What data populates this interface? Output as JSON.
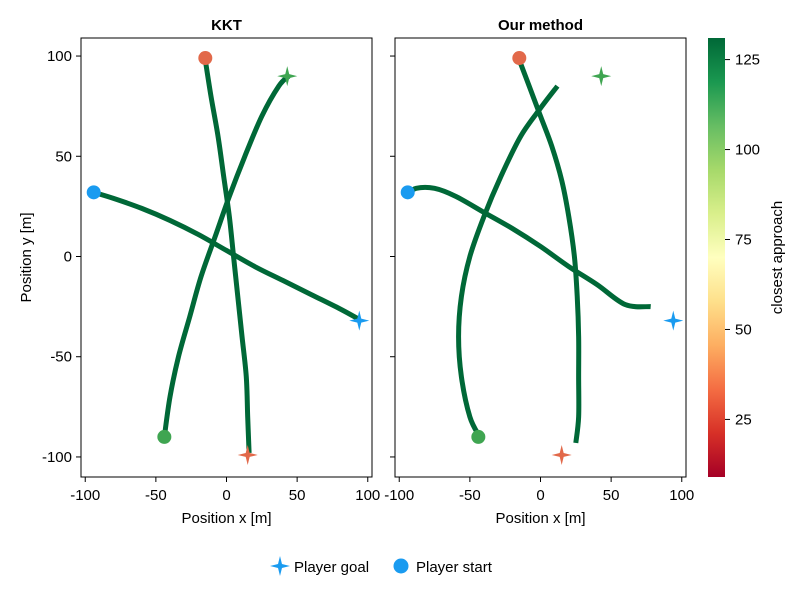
{
  "chart_data": {
    "type": "line",
    "panels": [
      {
        "title": "KKT",
        "xlabel": "Position x [m]",
        "ylabel": "Position y [m]",
        "xlim": [
          -103,
          103
        ],
        "ylim": [
          -110,
          109
        ],
        "xticks": [
          -100,
          -50,
          0,
          50,
          100
        ],
        "yticks": [
          -100,
          -50,
          0,
          50,
          100
        ],
        "trajectories": [
          {
            "points": [
              [
                -94,
                32
              ],
              [
                -80,
                29
              ],
              [
                -60,
                24
              ],
              [
                -40,
                18
              ],
              [
                -20,
                11
              ],
              [
                0,
                3
              ],
              [
                20,
                -5
              ],
              [
                40,
                -12
              ],
              [
                60,
                -19
              ],
              [
                80,
                -26
              ],
              [
                93,
                -31
              ]
            ]
          },
          {
            "points": [
              [
                -15,
                98
              ],
              [
                -11,
                80
              ],
              [
                -6,
                60
              ],
              [
                -2,
                40
              ],
              [
                2,
                20
              ],
              [
                5,
                0
              ],
              [
                8,
                -20
              ],
              [
                11,
                -40
              ],
              [
                14,
                -60
              ],
              [
                15,
                -80
              ],
              [
                16,
                -98
              ]
            ]
          },
          {
            "points": [
              [
                -44,
                -90
              ],
              [
                -40,
                -70
              ],
              [
                -34,
                -50
              ],
              [
                -26,
                -30
              ],
              [
                -18,
                -10
              ],
              [
                -8,
                10
              ],
              [
                2,
                30
              ],
              [
                13,
                50
              ],
              [
                25,
                70
              ],
              [
                37,
                85
              ],
              [
                44,
                90
              ]
            ]
          }
        ],
        "starts": [
          {
            "x": -94,
            "y": 32,
            "color": "#1a9bf0"
          },
          {
            "x": -15,
            "y": 99,
            "color": "#e2694a"
          },
          {
            "x": -44,
            "y": -90,
            "color": "#3fa551"
          }
        ],
        "goals": [
          {
            "x": 94,
            "y": -32,
            "color": "#1a9bf0"
          },
          {
            "x": 15,
            "y": -99,
            "color": "#e2694a"
          },
          {
            "x": 43,
            "y": 90,
            "color": "#3fa551"
          }
        ]
      },
      {
        "title": "Our method",
        "xlabel": "Position x [m]",
        "xlim": [
          -103,
          103
        ],
        "ylim": [
          -110,
          109
        ],
        "xticks": [
          -100,
          -50,
          0,
          50,
          100
        ],
        "yticks": [
          -100,
          -50,
          0,
          50,
          100
        ],
        "trajectories": [
          {
            "points": [
              [
                -94,
                31
              ],
              [
                -88,
                34
              ],
              [
                -75,
                34
              ],
              [
                -60,
                30
              ],
              [
                -40,
                22
              ],
              [
                -20,
                14
              ],
              [
                0,
                5
              ],
              [
                20,
                -5
              ],
              [
                40,
                -14
              ],
              [
                60,
                -24
              ],
              [
                78,
                -25
              ]
            ]
          },
          {
            "points": [
              [
                -15,
                98
              ],
              [
                -8,
                85
              ],
              [
                0,
                70
              ],
              [
                8,
                55
              ],
              [
                15,
                38
              ],
              [
                20,
                20
              ],
              [
                24,
                0
              ],
              [
                26,
                -20
              ],
              [
                27,
                -40
              ],
              [
                27,
                -60
              ],
              [
                27,
                -80
              ],
              [
                25,
                -93
              ]
            ]
          },
          {
            "points": [
              [
                -43,
                -90
              ],
              [
                -50,
                -80
              ],
              [
                -56,
                -60
              ],
              [
                -58,
                -40
              ],
              [
                -56,
                -20
              ],
              [
                -50,
                0
              ],
              [
                -40,
                20
              ],
              [
                -28,
                40
              ],
              [
                -14,
                60
              ],
              [
                0,
                74
              ],
              [
                12,
                85
              ]
            ]
          }
        ],
        "starts": [
          {
            "x": -94,
            "y": 32,
            "color": "#1a9bf0"
          },
          {
            "x": -15,
            "y": 99,
            "color": "#e2694a"
          },
          {
            "x": -44,
            "y": -90,
            "color": "#3fa551"
          }
        ],
        "goals": [
          {
            "x": 94,
            "y": -32,
            "color": "#1a9bf0"
          },
          {
            "x": 15,
            "y": -99,
            "color": "#e2694a"
          },
          {
            "x": 43,
            "y": 90,
            "color": "#3fa551"
          }
        ]
      }
    ],
    "line_color": "#006837",
    "colorbar": {
      "label": "closest approach",
      "range": [
        9,
        131
      ],
      "ticks": [
        25,
        50,
        75,
        100,
        125
      ],
      "colors": [
        "#a50026",
        "#d73027",
        "#f46d43",
        "#fdae61",
        "#fee08b",
        "#ffffbf",
        "#d9ef8b",
        "#a6d96a",
        "#66bd63",
        "#1a9850",
        "#006837"
      ]
    },
    "legend": {
      "placement": "bottom",
      "items": [
        {
          "label": "Player goal",
          "marker": "star4",
          "color": "#1a9bf0"
        },
        {
          "label": "Player start",
          "marker": "circle",
          "color": "#1a9bf0"
        }
      ]
    }
  }
}
